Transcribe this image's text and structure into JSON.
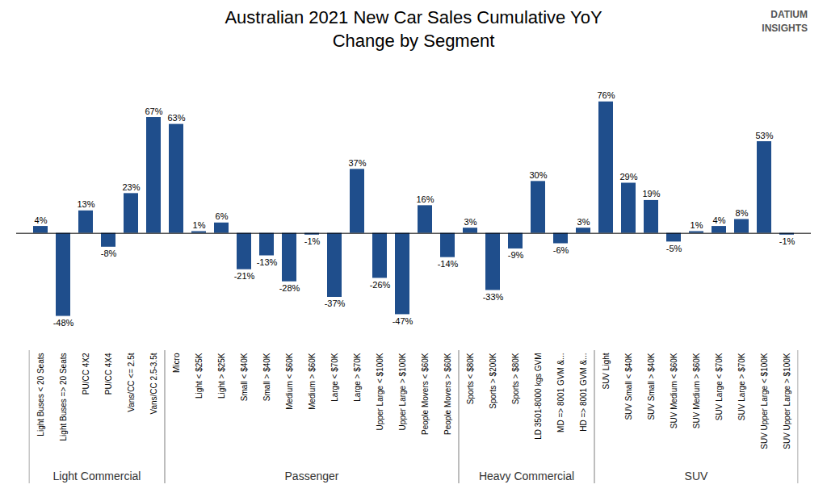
{
  "chart_data": {
    "type": "bar",
    "title": "Australian 2021 New Car Sales Cumulative YoY\nChange by Segment",
    "categories": [
      "Light Buses < 20 Seats",
      "Light Buses => 20 Seats",
      "PU/CC 4X2",
      "PU/CC 4X4",
      "Vans/CC <= 2.5t",
      "Vans/CC 2.5-3.5t",
      "Micro",
      "Light < $25K",
      "Light > $25K",
      "Small < $40K",
      "Small > $40K",
      "Medium < $60K",
      "Medium > $60K",
      "Large < $70K",
      "Large > $70K",
      "Upper Large < $100K",
      "Upper Large > $100K",
      "People Movers < $60K",
      "People Movers > $60K",
      "Sports < $80K",
      "Sports > $200K",
      "Sports > $80K",
      "LD 3501-8000 kgs GVM",
      "MD => 8001 GVM &...",
      "HD => 8001 GVM &...",
      "SUV Light",
      "SUV Small < $40K",
      "SUV Small > $40K",
      "SUV Medium < $60K",
      "SUV Medium > $60K",
      "SUV Large < $70K",
      "SUV Large > $70K",
      "SUV Upper Large < $100K",
      "SUV Upper Large > $100K"
    ],
    "values": [
      4,
      -48,
      13,
      -8,
      23,
      67,
      63,
      1,
      6,
      -21,
      -13,
      -28,
      -1,
      -37,
      37,
      -26,
      -47,
      16,
      -14,
      3,
      -33,
      -9,
      30,
      -6,
      3,
      76,
      29,
      19,
      -5,
      1,
      4,
      8,
      53,
      -1
    ],
    "value_labels": [
      "4%",
      "-48%",
      "13%",
      "-8%",
      "23%",
      "67%",
      "63%",
      "1%",
      "6%",
      "-21%",
      "-13%",
      "-28%",
      "-1%",
      "-37%",
      "37%",
      "-26%",
      "-47%",
      "16%",
      "-14%",
      "3%",
      "-33%",
      "-9%",
      "30%",
      "-6%",
      "3%",
      "76%",
      "29%",
      "19%",
      "-5%",
      "1%",
      "4%",
      "8%",
      "53%",
      "-1%"
    ],
    "data_labels": true,
    "color": "#1f4e8c",
    "ylim": [
      -65,
      95
    ],
    "tick_labels": "x",
    "groups": [
      {
        "name": "Light Commercial",
        "first": "Light Buses < 20 Seats",
        "last": "Vans/CC 2.5-3.5t"
      },
      {
        "name": "Passenger",
        "first": "Micro",
        "last": "People Movers > $60K"
      },
      {
        "name": "Heavy Commercial",
        "first": "Sports < $80K",
        "last": "HD => 8001 GVM &..."
      },
      {
        "name": "SUV",
        "first": "SUV Light",
        "last": "SUV Upper Large > $100K"
      }
    ],
    "annotations": [
      {
        "text": "DATIUM\nINSIGHTS"
      }
    ]
  }
}
